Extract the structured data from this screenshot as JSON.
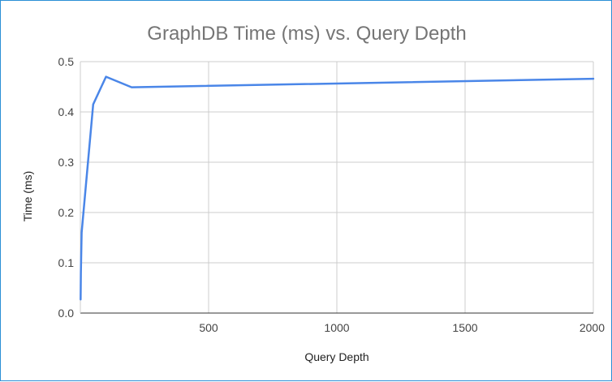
{
  "chart_data": {
    "type": "line",
    "title": "GraphDB Time (ms) vs. Query Depth",
    "xlabel": "Query Depth",
    "ylabel": "Time (ms)",
    "xlim": [
      0,
      2000
    ],
    "ylim": [
      0,
      0.5
    ],
    "x_ticks": [
      500,
      1000,
      1500,
      2000
    ],
    "y_ticks": [
      0.0,
      0.1,
      0.2,
      0.3,
      0.4,
      0.5
    ],
    "x_tick_labels": [
      "500",
      "1000",
      "1500",
      "2000"
    ],
    "y_tick_labels": [
      "0.0",
      "0.1",
      "0.2",
      "0.3",
      "0.4",
      "0.5"
    ],
    "grid": true,
    "legend": "none",
    "series": [
      {
        "color": "#4a86e8",
        "x": [
          1,
          2,
          5,
          50,
          100,
          200,
          2000
        ],
        "y": [
          0.027,
          0.08,
          0.16,
          0.415,
          0.47,
          0.449,
          0.466
        ]
      }
    ]
  }
}
